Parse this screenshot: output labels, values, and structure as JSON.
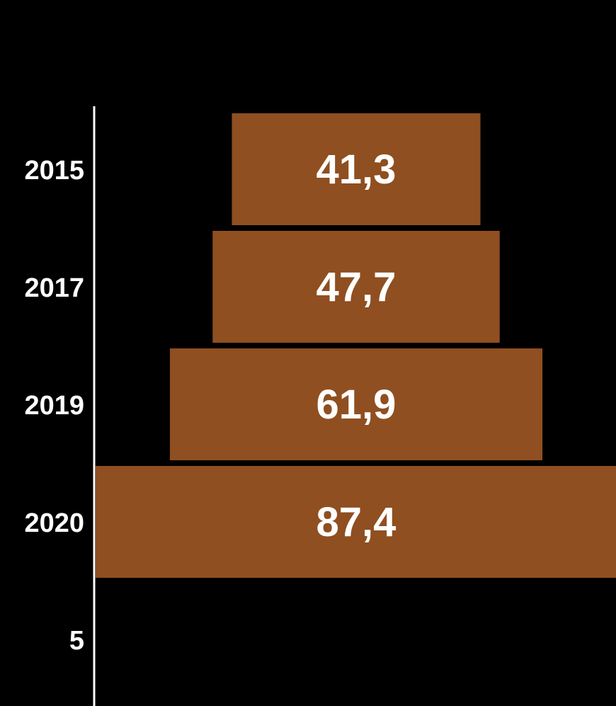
{
  "chart_data": {
    "type": "bar",
    "orientation": "horizontal",
    "layout": "centered-funnel",
    "categories": [
      "2015",
      "2017",
      "2019",
      "2020",
      "5"
    ],
    "values": [
      41.3,
      47.7,
      61.9,
      87.4,
      null
    ],
    "data_labels": [
      "41,3",
      "47,7",
      "61,9",
      "87,4",
      ""
    ],
    "title": "",
    "xlabel": "",
    "ylabel": "",
    "grid": false,
    "legend": "none"
  },
  "colors": {
    "background": "#000000",
    "bar": "#8f4f20",
    "axis": "#ffffff",
    "text": "#ffffff"
  }
}
